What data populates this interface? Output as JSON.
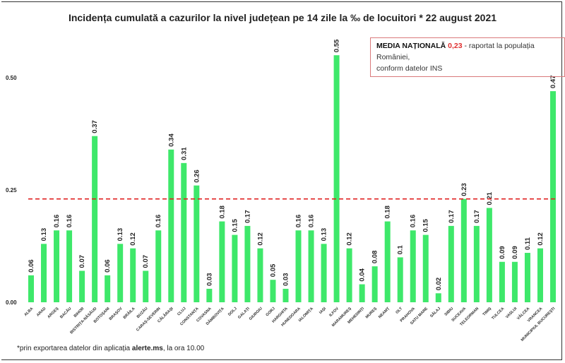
{
  "chart_data": {
    "type": "bar",
    "title": "Incidența cumulată a cazurilor la nivel județean pe 14 zile la ‰ de locuitori *  22 august 2021",
    "categories": [
      "ALBA",
      "ARAD",
      "ARGEȘ",
      "BACĂU",
      "BIHOR",
      "BISTRIȚA-NĂSĂUD",
      "BOTOȘANI",
      "BRAȘOV",
      "BRĂILA",
      "BUZĂU",
      "CARAȘ-SEVERIN",
      "CĂLĂRAȘI",
      "CLUJ",
      "CONSTANȚA",
      "COVASNA",
      "DÂMBOVIȚA",
      "DOLJ",
      "GALAȚI",
      "GIURGIU",
      "GORJ",
      "HARGHITA",
      "HUNEDOARA",
      "IALOMIȚA",
      "IAȘI",
      "ILFOV",
      "MARAMUREȘ",
      "MEHEDINȚI",
      "MUREȘ",
      "NEAMȚ",
      "OLT",
      "PRAHOVA",
      "SATU MARE",
      "SĂLAJ",
      "SIBIU",
      "SUCEAVA",
      "TELEORMAN",
      "TIMIȘ",
      "TULCEA",
      "VASLUI",
      "VÂLCEA",
      "VRANCEA",
      "MUNICIPIUL BUCUREȘTI"
    ],
    "values": [
      0.06,
      0.13,
      0.16,
      0.16,
      0.07,
      0.37,
      0.06,
      0.13,
      0.12,
      0.07,
      0.16,
      0.34,
      0.31,
      0.26,
      0.03,
      0.18,
      0.15,
      0.17,
      0.12,
      0.05,
      0.03,
      0.16,
      0.16,
      0.13,
      0.55,
      0.12,
      0.04,
      0.08,
      0.18,
      0.1,
      0.16,
      0.15,
      0.02,
      0.17,
      0.23,
      0.17,
      0.21,
      0.09,
      0.09,
      0.11,
      0.12,
      0.47
    ],
    "data_labels": [
      "0.06",
      "0.13",
      "0.16",
      "0.16",
      "0.07",
      "0.37",
      "0.06",
      "0.13",
      "0.12",
      "0.07",
      "0.16",
      "0.34",
      "0.31",
      "0.26",
      "0.03",
      "0.18",
      "0.15",
      "0.17",
      "0.12",
      "0.05",
      "0.03",
      "0.16",
      "0.16",
      "0.13",
      "0.55",
      "0.12",
      "0.04",
      "0.08",
      "0.18",
      "0.1",
      "0.16",
      "0.15",
      "0.02",
      "0.17",
      "0.23",
      "0.17",
      "0.21",
      "0.09",
      "0.09",
      "0.11",
      "0.12",
      "0.47"
    ],
    "yticks": [
      "0.00",
      "0.25",
      "0.50"
    ],
    "ylim": [
      0,
      0.55
    ],
    "reference_line": {
      "value": 0.23,
      "style": "dashed",
      "color": "#e02020"
    },
    "bar_color": "#3ee86a",
    "grid": false,
    "xlabel": "",
    "ylabel": ""
  },
  "note": {
    "label": "MEDIA NAȚIONALĂ",
    "value": "0,23",
    "text1": " - raportat la populația României,",
    "text2": "conform datelor INS"
  },
  "footer": {
    "prefix": "*prin exportarea datelor din aplicația ",
    "app": "alerte.ms",
    "suffix": ", la ora 10.00"
  }
}
